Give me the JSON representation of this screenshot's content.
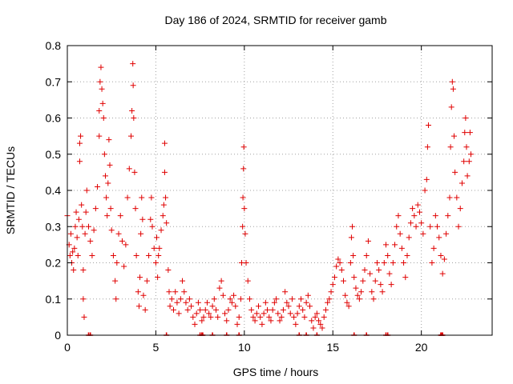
{
  "chart_data": {
    "type": "scatter",
    "title": "Day 186 of 2024, SRMTID for receiver gamb",
    "xlabel": "GPS time / hours",
    "ylabel": "SRMTID / TECUs",
    "xlim": [
      0,
      24
    ],
    "ylim": [
      0,
      0.8
    ],
    "xticks": [
      0,
      5,
      10,
      15,
      20
    ],
    "yticks": [
      0,
      0.1,
      0.2,
      0.3,
      0.4,
      0.5,
      0.6,
      0.7,
      0.8
    ],
    "xtick_labels": [
      "0",
      "5",
      "10",
      "15",
      "20"
    ],
    "ytick_labels": [
      "0",
      "0.1",
      "0.2",
      "0.3",
      "0.4",
      "0.5",
      "0.6",
      "0.7",
      "0.8"
    ],
    "grid": true,
    "marker": "plus",
    "color": "#e00000",
    "series": [
      {
        "name": "SRMTID",
        "points": [
          [
            0.0,
            0.33
          ],
          [
            0.1,
            0.25
          ],
          [
            0.15,
            0.22
          ],
          [
            0.2,
            0.28
          ],
          [
            0.25,
            0.2
          ],
          [
            0.3,
            0.23
          ],
          [
            0.35,
            0.18
          ],
          [
            0.4,
            0.24
          ],
          [
            0.45,
            0.3
          ],
          [
            0.5,
            0.34
          ],
          [
            0.55,
            0.27
          ],
          [
            0.6,
            0.22
          ],
          [
            0.65,
            0.32
          ],
          [
            0.7,
            0.48
          ],
          [
            0.7,
            0.53
          ],
          [
            0.75,
            0.55
          ],
          [
            0.8,
            0.36
          ],
          [
            0.85,
            0.3
          ],
          [
            0.9,
            0.18
          ],
          [
            0.9,
            0.1
          ],
          [
            0.95,
            0.05
          ],
          [
            1.0,
            0.28
          ],
          [
            1.05,
            0.34
          ],
          [
            1.1,
            0.4
          ],
          [
            1.2,
            0.3
          ],
          [
            1.3,
            0.26
          ],
          [
            1.4,
            0.22
          ],
          [
            1.5,
            0.29
          ],
          [
            1.6,
            0.35
          ],
          [
            1.7,
            0.41
          ],
          [
            1.8,
            0.55
          ],
          [
            1.8,
            0.62
          ],
          [
            1.85,
            0.7
          ],
          [
            1.9,
            0.74
          ],
          [
            1.95,
            0.68
          ],
          [
            2.0,
            0.64
          ],
          [
            2.05,
            0.6
          ],
          [
            2.1,
            0.5
          ],
          [
            2.15,
            0.44
          ],
          [
            2.2,
            0.38
          ],
          [
            2.25,
            0.33
          ],
          [
            2.3,
            0.42
          ],
          [
            2.35,
            0.54
          ],
          [
            2.4,
            0.47
          ],
          [
            2.45,
            0.35
          ],
          [
            2.5,
            0.29
          ],
          [
            2.6,
            0.22
          ],
          [
            2.7,
            0.15
          ],
          [
            2.75,
            0.1
          ],
          [
            2.8,
            0.2
          ],
          [
            2.9,
            0.28
          ],
          [
            3.0,
            0.33
          ],
          [
            3.1,
            0.26
          ],
          [
            3.2,
            0.19
          ],
          [
            3.3,
            0.25
          ],
          [
            3.4,
            0.38
          ],
          [
            3.5,
            0.46
          ],
          [
            3.6,
            0.55
          ],
          [
            3.65,
            0.62
          ],
          [
            3.7,
            0.75
          ],
          [
            3.72,
            0.69
          ],
          [
            3.75,
            0.6
          ],
          [
            3.8,
            0.45
          ],
          [
            3.85,
            0.35
          ],
          [
            3.9,
            0.22
          ],
          [
            4.0,
            0.12
          ],
          [
            4.05,
            0.08
          ],
          [
            4.1,
            0.16
          ],
          [
            4.15,
            0.28
          ],
          [
            4.2,
            0.38
          ],
          [
            4.25,
            0.32
          ],
          [
            4.3,
            0.11
          ],
          [
            4.4,
            0.07
          ],
          [
            4.5,
            0.15
          ],
          [
            4.6,
            0.22
          ],
          [
            4.7,
            0.32
          ],
          [
            4.75,
            0.38
          ],
          [
            4.8,
            0.3
          ],
          [
            4.9,
            0.24
          ],
          [
            5.0,
            0.2
          ],
          [
            5.05,
            0.27
          ],
          [
            5.1,
            0.16
          ],
          [
            5.15,
            0.22
          ],
          [
            5.2,
            0.24
          ],
          [
            5.3,
            0.29
          ],
          [
            5.4,
            0.33
          ],
          [
            5.45,
            0.36
          ],
          [
            5.5,
            0.45
          ],
          [
            5.5,
            0.53
          ],
          [
            5.55,
            0.38
          ],
          [
            5.6,
            0.31
          ],
          [
            5.7,
            0.18
          ],
          [
            5.75,
            0.12
          ],
          [
            5.8,
            0.08
          ],
          [
            5.9,
            0.1
          ],
          [
            6.0,
            0.07
          ],
          [
            6.1,
            0.12
          ],
          [
            6.2,
            0.09
          ],
          [
            6.3,
            0.06
          ],
          [
            6.4,
            0.1
          ],
          [
            6.5,
            0.15
          ],
          [
            6.6,
            0.12
          ],
          [
            6.7,
            0.09
          ],
          [
            6.8,
            0.07
          ],
          [
            6.9,
            0.1
          ],
          [
            7.0,
            0.08
          ],
          [
            7.1,
            0.05
          ],
          [
            7.2,
            0.03
          ],
          [
            7.3,
            0.06
          ],
          [
            7.4,
            0.09
          ],
          [
            7.5,
            0.07
          ],
          [
            7.6,
            0.04
          ],
          [
            7.7,
            0.05
          ],
          [
            7.8,
            0.07
          ],
          [
            7.9,
            0.09
          ],
          [
            8.0,
            0.06
          ],
          [
            8.1,
            0.05
          ],
          [
            8.2,
            0.08
          ],
          [
            8.3,
            0.1
          ],
          [
            8.4,
            0.07
          ],
          [
            8.5,
            0.05
          ],
          [
            8.6,
            0.13
          ],
          [
            8.7,
            0.15
          ],
          [
            8.8,
            0.11
          ],
          [
            8.9,
            0.06
          ],
          [
            9.0,
            0.04
          ],
          [
            9.1,
            0.07
          ],
          [
            9.2,
            0.1
          ],
          [
            9.3,
            0.09
          ],
          [
            9.4,
            0.11
          ],
          [
            9.5,
            0.08
          ],
          [
            9.6,
            0.03
          ],
          [
            9.7,
            0.05
          ],
          [
            9.8,
            0.1
          ],
          [
            9.85,
            0.2
          ],
          [
            9.9,
            0.3
          ],
          [
            9.92,
            0.38
          ],
          [
            9.95,
            0.46
          ],
          [
            9.97,
            0.52
          ],
          [
            10.0,
            0.35
          ],
          [
            10.05,
            0.28
          ],
          [
            10.1,
            0.2
          ],
          [
            10.2,
            0.15
          ],
          [
            10.3,
            0.1
          ],
          [
            10.4,
            0.07
          ],
          [
            10.5,
            0.05
          ],
          [
            10.6,
            0.04
          ],
          [
            10.7,
            0.06
          ],
          [
            10.8,
            0.08
          ],
          [
            10.9,
            0.05
          ],
          [
            11.0,
            0.03
          ],
          [
            11.1,
            0.06
          ],
          [
            11.2,
            0.09
          ],
          [
            11.3,
            0.07
          ],
          [
            11.4,
            0.05
          ],
          [
            11.5,
            0.04
          ],
          [
            11.6,
            0.07
          ],
          [
            11.7,
            0.09
          ],
          [
            11.8,
            0.1
          ],
          [
            11.9,
            0.06
          ],
          [
            12.0,
            0.04
          ],
          [
            12.1,
            0.05
          ],
          [
            12.2,
            0.07
          ],
          [
            12.3,
            0.12
          ],
          [
            12.4,
            0.09
          ],
          [
            12.5,
            0.08
          ],
          [
            12.6,
            0.06
          ],
          [
            12.7,
            0.1
          ],
          [
            12.8,
            0.05
          ],
          [
            12.9,
            0.03
          ],
          [
            13.0,
            0.06
          ],
          [
            13.1,
            0.08
          ],
          [
            13.2,
            0.1
          ],
          [
            13.3,
            0.07
          ],
          [
            13.4,
            0.05
          ],
          [
            13.5,
            0.09
          ],
          [
            13.6,
            0.11
          ],
          [
            13.7,
            0.08
          ],
          [
            13.8,
            0.04
          ],
          [
            13.9,
            0.02
          ],
          [
            14.0,
            0.05
          ],
          [
            14.1,
            0.06
          ],
          [
            14.2,
            0.04
          ],
          [
            14.3,
            0.03
          ],
          [
            14.4,
            0.02
          ],
          [
            14.5,
            0.05
          ],
          [
            14.6,
            0.07
          ],
          [
            14.7,
            0.09
          ],
          [
            14.8,
            0.1
          ],
          [
            14.9,
            0.12
          ],
          [
            15.0,
            0.14
          ],
          [
            15.1,
            0.16
          ],
          [
            15.2,
            0.19
          ],
          [
            15.3,
            0.21
          ],
          [
            15.4,
            0.2
          ],
          [
            15.5,
            0.18
          ],
          [
            15.6,
            0.15
          ],
          [
            15.7,
            0.11
          ],
          [
            15.8,
            0.09
          ],
          [
            15.9,
            0.08
          ],
          [
            16.0,
            0.2
          ],
          [
            16.05,
            0.27
          ],
          [
            16.1,
            0.3
          ],
          [
            16.15,
            0.22
          ],
          [
            16.2,
            0.16
          ],
          [
            16.3,
            0.13
          ],
          [
            16.4,
            0.11
          ],
          [
            16.5,
            0.1
          ],
          [
            16.6,
            0.12
          ],
          [
            16.7,
            0.15
          ],
          [
            16.8,
            0.18
          ],
          [
            16.9,
            0.22
          ],
          [
            17.0,
            0.26
          ],
          [
            17.1,
            0.17
          ],
          [
            17.2,
            0.12
          ],
          [
            17.3,
            0.1
          ],
          [
            17.4,
            0.15
          ],
          [
            17.5,
            0.2
          ],
          [
            17.6,
            0.18
          ],
          [
            17.7,
            0.14
          ],
          [
            17.8,
            0.12
          ],
          [
            17.9,
            0.2
          ],
          [
            18.0,
            0.25
          ],
          [
            18.1,
            0.22
          ],
          [
            18.2,
            0.17
          ],
          [
            18.3,
            0.14
          ],
          [
            18.4,
            0.2
          ],
          [
            18.5,
            0.25
          ],
          [
            18.6,
            0.3
          ],
          [
            18.7,
            0.33
          ],
          [
            18.8,
            0.28
          ],
          [
            18.9,
            0.24
          ],
          [
            19.0,
            0.2
          ],
          [
            19.1,
            0.16
          ],
          [
            19.2,
            0.22
          ],
          [
            19.3,
            0.27
          ],
          [
            19.4,
            0.31
          ],
          [
            19.5,
            0.35
          ],
          [
            19.6,
            0.33
          ],
          [
            19.7,
            0.3
          ],
          [
            19.8,
            0.36
          ],
          [
            19.9,
            0.34
          ],
          [
            20.0,
            0.31
          ],
          [
            20.1,
            0.28
          ],
          [
            20.2,
            0.4
          ],
          [
            20.3,
            0.43
          ],
          [
            20.35,
            0.52
          ],
          [
            20.4,
            0.58
          ],
          [
            20.5,
            0.3
          ],
          [
            20.6,
            0.2
          ],
          [
            20.7,
            0.24
          ],
          [
            20.8,
            0.33
          ],
          [
            20.9,
            0.3
          ],
          [
            21.0,
            0.27
          ],
          [
            21.1,
            0.22
          ],
          [
            21.2,
            0.17
          ],
          [
            21.3,
            0.21
          ],
          [
            21.4,
            0.28
          ],
          [
            21.5,
            0.33
          ],
          [
            21.6,
            0.38
          ],
          [
            21.65,
            0.52
          ],
          [
            21.7,
            0.63
          ],
          [
            21.75,
            0.7
          ],
          [
            21.8,
            0.68
          ],
          [
            21.85,
            0.55
          ],
          [
            21.9,
            0.45
          ],
          [
            22.0,
            0.38
          ],
          [
            22.1,
            0.3
          ],
          [
            22.2,
            0.35
          ],
          [
            22.3,
            0.42
          ],
          [
            22.4,
            0.48
          ],
          [
            22.45,
            0.56
          ],
          [
            22.5,
            0.6
          ],
          [
            22.55,
            0.52
          ],
          [
            22.6,
            0.44
          ],
          [
            22.7,
            0.48
          ],
          [
            22.75,
            0.56
          ],
          [
            22.8,
            0.5
          ]
        ],
        "zero_marks": [
          1.2,
          1.3,
          5.6,
          7.5,
          7.6,
          7.65,
          8.2,
          9.0,
          9.7,
          13.1,
          13.5,
          14.1,
          16.2,
          16.9,
          18.0,
          18.1,
          21.1,
          21.15,
          21.2
        ]
      }
    ]
  }
}
